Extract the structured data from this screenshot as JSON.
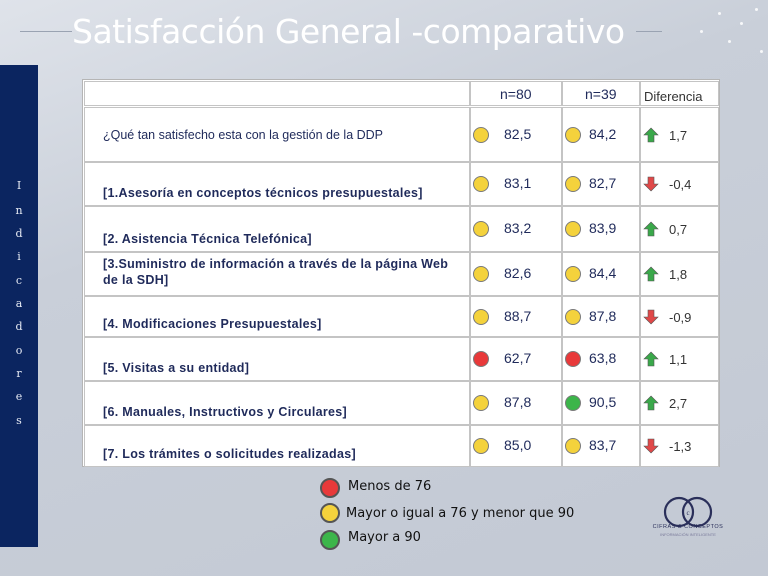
{
  "title": "Satisfacción General -comparativo",
  "sidebar_letters": [
    "I",
    "n",
    "d",
    "i",
    "c",
    "a",
    "d",
    "o",
    "r",
    "e",
    "s"
  ],
  "table": {
    "col_n80": "n=80",
    "col_n39": "n=39",
    "col_diff": "Diferencia",
    "rows": [
      {
        "question": "¿Qué  tan satisfecho esta con la gestión de la DDP",
        "v1": "82,5",
        "c1": "yellow",
        "v2": "84,2",
        "c2": "yellow",
        "diff": "1,7",
        "dir": "up"
      },
      {
        "question": "[1.Asesoría en conceptos técnicos presupuestales]",
        "v1": "83,1",
        "c1": "yellow",
        "v2": "82,7",
        "c2": "yellow",
        "diff": "-0,4",
        "dir": "down"
      },
      {
        "question": "[2. Asistencia Técnica Telefónica]",
        "v1": "83,2",
        "c1": "yellow",
        "v2": "83,9",
        "c2": "yellow",
        "diff": "0,7",
        "dir": "up"
      },
      {
        "question": "[3.Suministro de información a través de la página Web",
        "question2": "de la SDH]",
        "v1": "82,6",
        "c1": "yellow",
        "v2": "84,4",
        "c2": "yellow",
        "diff": "1,8",
        "dir": "up"
      },
      {
        "question": "[4. Modificaciones Presupuestales]",
        "v1": "88,7",
        "c1": "yellow",
        "v2": "87,8",
        "c2": "yellow",
        "diff": "-0,9",
        "dir": "down"
      },
      {
        "question": "[5. Visitas a  su entidad]",
        "v1": "62,7",
        "c1": "red",
        "v2": "63,8",
        "c2": "red",
        "diff": "1,1",
        "dir": "up"
      },
      {
        "question": "[6. Manuales, Instructivos y Circulares]",
        "v1": "87,8",
        "c1": "yellow",
        "v2": "90,5",
        "c2": "green",
        "diff": "2,7",
        "dir": "up"
      },
      {
        "question": "[7. Los trámites o solicitudes realizadas]",
        "v1": "85,0",
        "c1": "yellow",
        "v2": "83,7",
        "c2": "yellow",
        "diff": "-1,3",
        "dir": "down"
      }
    ]
  },
  "legend": [
    {
      "label": "Menos de 76",
      "color": "red"
    },
    {
      "label": "Mayor o igual a 76 y menor que 90",
      "color": "yellow"
    },
    {
      "label": "Mayor a 90",
      "color": "green"
    }
  ],
  "logo": {
    "name": "CIFRAS & CONCEPTOS",
    "tagline": "INFORMACIÓN INTELIGENTE"
  },
  "colors": {
    "red": "#e8393a",
    "yellow": "#f4d23c",
    "green": "#3cb54a",
    "arrow_up": "#3aa84a",
    "arrow_down": "#e04848",
    "sidebar": "#0b2560"
  }
}
